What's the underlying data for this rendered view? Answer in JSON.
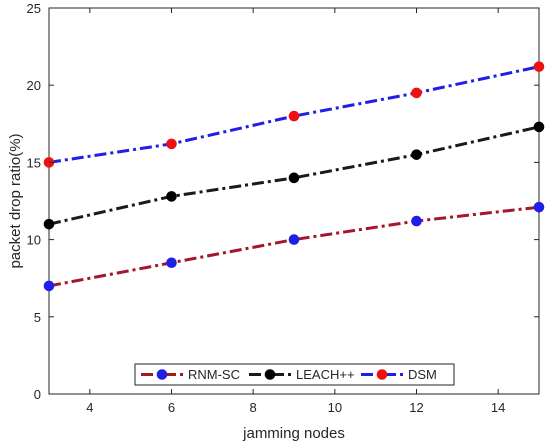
{
  "chart_data": {
    "type": "line",
    "xlabel": "jamming nodes",
    "ylabel": "packet drop ratio(%)",
    "xlim": [
      3,
      15
    ],
    "ylim": [
      0,
      25
    ],
    "xticks": [
      4,
      6,
      8,
      10,
      12,
      14
    ],
    "yticks": [
      0,
      5,
      10,
      15,
      20,
      25
    ],
    "x": [
      3,
      6,
      9,
      12,
      15
    ],
    "grid": false,
    "legend_position": "bottom-center",
    "series": [
      {
        "name": "RNM-SC",
        "values": [
          7.0,
          8.5,
          10.0,
          11.2,
          12.1
        ],
        "line_color": "#a3162b",
        "marker_color": "#1f1fe8"
      },
      {
        "name": "LEACH++",
        "values": [
          11.0,
          12.8,
          14.0,
          15.5,
          17.3
        ],
        "line_color": "#1a1a1a",
        "marker_color": "#000000"
      },
      {
        "name": "DSM",
        "values": [
          15.0,
          16.2,
          18.0,
          19.5,
          21.2
        ],
        "line_color": "#1f1fe8",
        "marker_color": "#ee1111"
      }
    ]
  }
}
